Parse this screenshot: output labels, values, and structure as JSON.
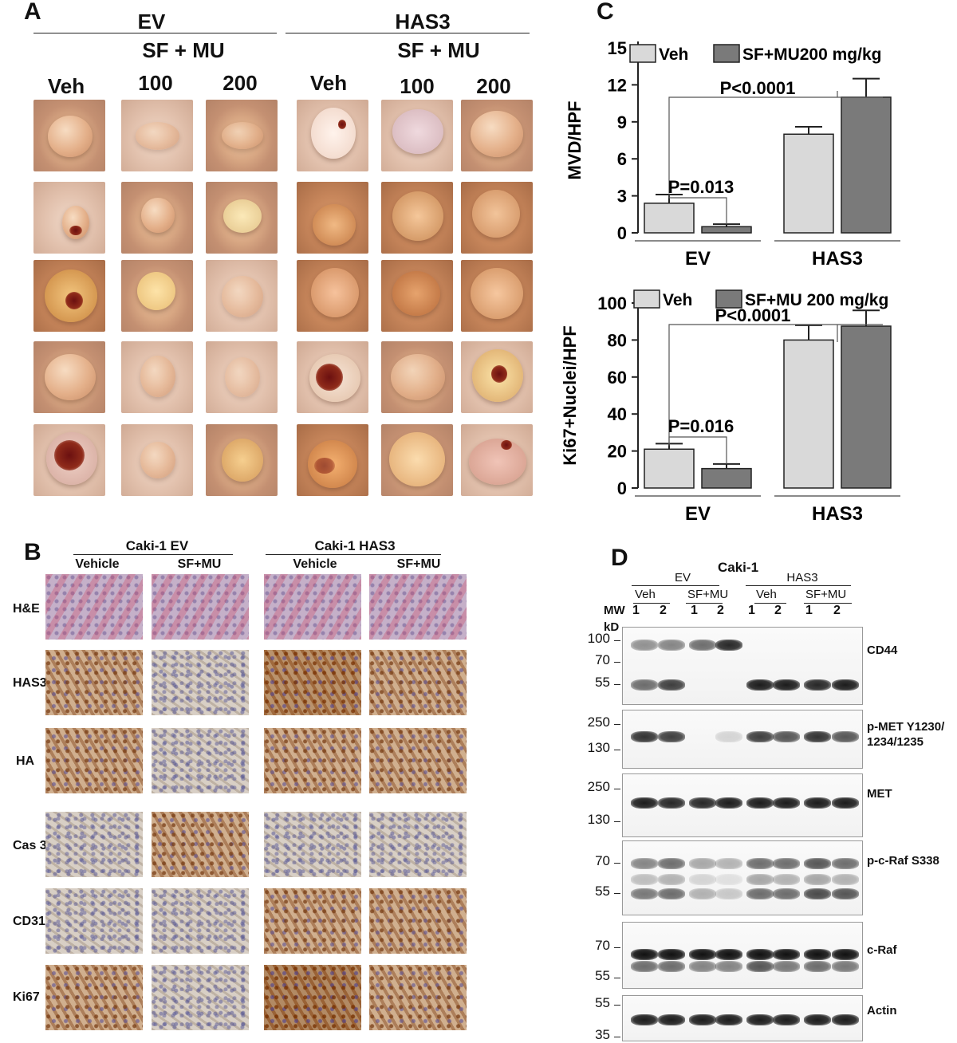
{
  "panel_a": {
    "label": "A",
    "groups": [
      "EV",
      "HAS3"
    ],
    "treatment": "SF + MU",
    "columns": [
      "Veh",
      "100",
      "200",
      "Veh",
      "100",
      "200"
    ]
  },
  "panel_b": {
    "label": "B",
    "groups": [
      "Caki-1 EV",
      "Caki-1 HAS3"
    ],
    "columns": [
      "Vehicle",
      "SF+MU",
      "Vehicle",
      "SF+MU"
    ],
    "rows": [
      "H&E",
      "HAS3",
      "HA",
      "Cas 3",
      "CD31",
      "Ki67"
    ]
  },
  "panel_c": {
    "label": "C"
  },
  "panel_d": {
    "label": "D",
    "title": "Caki-1",
    "groups": [
      "EV",
      "HAS3"
    ],
    "treatments": [
      "Veh",
      "SF+MU",
      "Veh",
      "SF+MU"
    ],
    "lanes": [
      "1",
      "2",
      "1",
      "2",
      "1",
      "2",
      "1",
      "2"
    ],
    "mw_header": "MW",
    "kd_header": "kD",
    "blots": [
      {
        "name": "CD44",
        "markers": [
          "100",
          "70",
          "55"
        ]
      },
      {
        "name": "p-MET Y1230/\n1234/1235",
        "markers": [
          "250",
          "130"
        ]
      },
      {
        "name": "MET",
        "markers": [
          "250",
          "130"
        ]
      },
      {
        "name": "p-c-Raf S338",
        "markers": [
          "70",
          "55"
        ]
      },
      {
        "name": "c-Raf",
        "markers": [
          "70",
          "55"
        ]
      },
      {
        "name": "Actin",
        "markers": [
          "55",
          "35"
        ]
      }
    ]
  },
  "chart_data": [
    {
      "type": "bar",
      "categories": [
        "EV",
        "HAS3"
      ],
      "series": [
        {
          "name": "Veh",
          "color": "#d9d9d9",
          "values": [
            2.4,
            8.0
          ],
          "errors": [
            0.7,
            0.6
          ]
        },
        {
          "name": "SF+MU200 mg/kg",
          "color": "#7a7a7a",
          "values": [
            0.5,
            11.0
          ],
          "errors": [
            0.2,
            1.5
          ]
        }
      ],
      "ylabel": "MVD/HPF",
      "yticks": [
        0,
        3,
        6,
        9,
        12,
        15
      ],
      "ylim": [
        0,
        15
      ],
      "annotations": [
        "P<0.0001",
        "P=0.013"
      ],
      "legend": "top"
    },
    {
      "type": "bar",
      "categories": [
        "EV",
        "HAS3"
      ],
      "series": [
        {
          "name": "Veh",
          "color": "#d9d9d9",
          "values": [
            21,
            80
          ],
          "errors": [
            3,
            8
          ]
        },
        {
          "name": "SF+MU 200 mg/kg",
          "color": "#7a7a7a",
          "values": [
            10.5,
            87.5
          ],
          "errors": [
            2.5,
            8.5
          ]
        }
      ],
      "ylabel": "Ki67+Nuclei/HPF",
      "yticks": [
        0,
        20,
        40,
        60,
        80,
        100
      ],
      "ylim": [
        0,
        110
      ],
      "annotations": [
        "P<0.0001",
        "P=0.016"
      ],
      "legend": "top"
    }
  ]
}
